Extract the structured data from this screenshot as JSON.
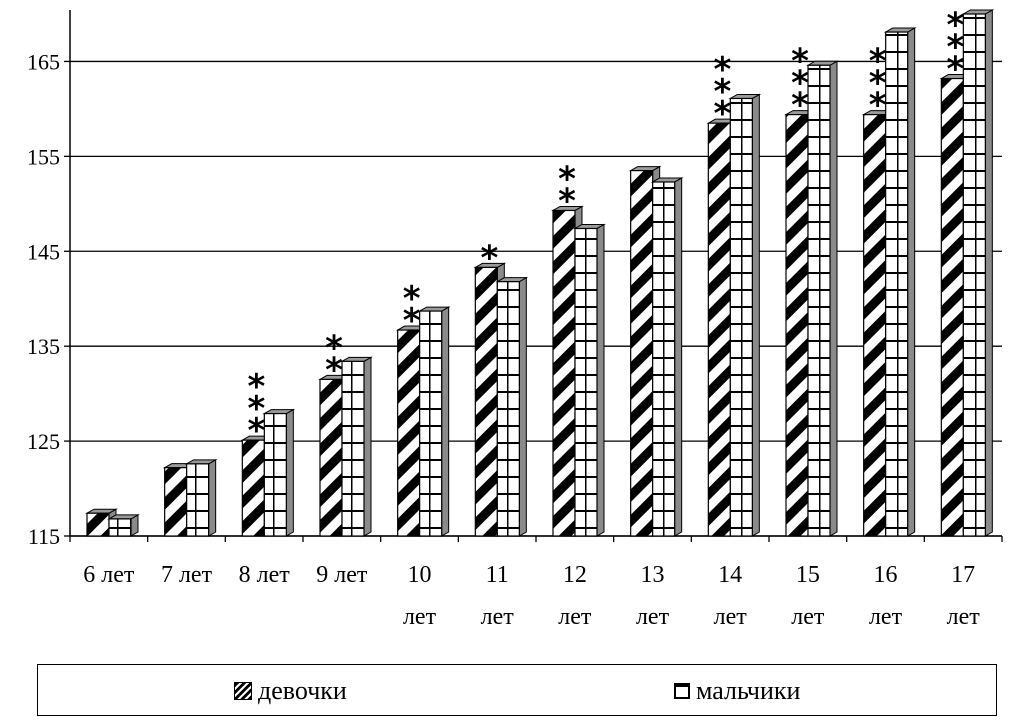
{
  "chart_data": {
    "type": "bar",
    "title": "",
    "xlabel": "",
    "ylabel": "",
    "ylim": [
      115,
      170
    ],
    "yticks": [
      115,
      125,
      135,
      145,
      155,
      165
    ],
    "grid": true,
    "legend_position": "bottom",
    "categories": [
      [
        "6 лет",
        ""
      ],
      [
        "7 лет",
        ""
      ],
      [
        "8 лет",
        ""
      ],
      [
        "9 лет",
        ""
      ],
      [
        "10",
        "лет"
      ],
      [
        "11",
        "лет"
      ],
      [
        "12",
        "лет"
      ],
      [
        "13",
        "лет"
      ],
      [
        "14",
        "лет"
      ],
      [
        "15",
        "лет"
      ],
      [
        "16",
        "лет"
      ],
      [
        "17",
        "лет"
      ]
    ],
    "series": [
      {
        "name": "девочки",
        "values": [
          117.4,
          122.2,
          125.1,
          131.5,
          136.7,
          143.3,
          149.3,
          153.5,
          158.5,
          159.4,
          159.4,
          163.2
        ],
        "pattern": "diagonal",
        "color": "#000000"
      },
      {
        "name": "мальчики",
        "values": [
          116.8,
          122.6,
          127.9,
          133.4,
          138.7,
          141.8,
          147.4,
          152.3,
          161.1,
          164.6,
          168.1,
          170.0
        ],
        "pattern": "grid",
        "color": "#000000"
      }
    ],
    "significance": [
      "",
      "",
      "***",
      "**",
      "**",
      "*",
      "**",
      "",
      "***",
      "***",
      "***",
      "***"
    ],
    "colors": {
      "bar_side": "#8a8a8a",
      "bar_top": "#9a9a9a",
      "grid": "#000000"
    }
  },
  "legend": {
    "girls_label": "девочки",
    "boys_label": "мальчики"
  }
}
